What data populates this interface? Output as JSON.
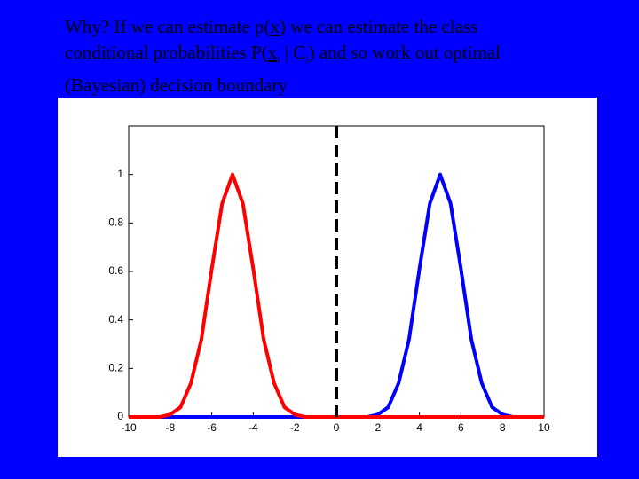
{
  "slide_text": {
    "lines": [
      [
        "Why? If we can estimate p(",
        "x",
        ") we can estimate the class"
      ],
      [
        "conditional probabilities P(",
        "x",
        "i",
        " | C",
        "i",
        ") and so work out optimal"
      ],
      [
        "(Bayesian) decision boundary"
      ]
    ]
  },
  "chart_data": {
    "type": "line",
    "x": [
      -10,
      -9.5,
      -9,
      -8.5,
      -8,
      -7.5,
      -7,
      -6.5,
      -6,
      -5.5,
      -5,
      -4.5,
      -4,
      -3.5,
      -3,
      -2.5,
      -2,
      -1.5,
      -1,
      -0.5,
      0,
      0.5,
      1,
      1.5,
      2,
      2.5,
      3,
      3.5,
      4,
      4.5,
      5,
      5.5,
      6,
      6.5,
      7,
      7.5,
      8,
      8.5,
      9,
      9.5,
      10
    ],
    "series": [
      {
        "color": "#0000ff",
        "values": [
          0,
          0,
          0,
          0,
          0,
          0,
          0,
          0,
          0,
          0,
          0,
          0,
          0,
          0,
          0,
          0,
          0,
          0,
          0,
          0,
          0,
          0,
          0,
          0,
          0.01,
          0.04,
          0.14,
          0.32,
          0.61,
          0.88,
          1,
          0.88,
          0.61,
          0.32,
          0.14,
          0.04,
          0.01,
          0,
          0,
          0,
          0
        ]
      },
      {
        "color": "#ff0000",
        "values": [
          0,
          0,
          0,
          0,
          0.01,
          0.04,
          0.14,
          0.32,
          0.61,
          0.88,
          1,
          0.88,
          0.61,
          0.32,
          0.14,
          0.04,
          0.01,
          0,
          0,
          0,
          0,
          0,
          0,
          0,
          0,
          0,
          0,
          0,
          0,
          0,
          0,
          0,
          0,
          0,
          0,
          0,
          0,
          0,
          0,
          0,
          0
        ]
      }
    ],
    "decision_boundary_x": 0,
    "xlim": [
      -10,
      10
    ],
    "xticks": [
      -10,
      -8,
      -6,
      -4,
      -2,
      0,
      2,
      4,
      6,
      8,
      10
    ],
    "ylim": [
      0,
      1.2
    ],
    "yticks": [
      0,
      0.2,
      0.4,
      0.6,
      0.8,
      1
    ]
  }
}
